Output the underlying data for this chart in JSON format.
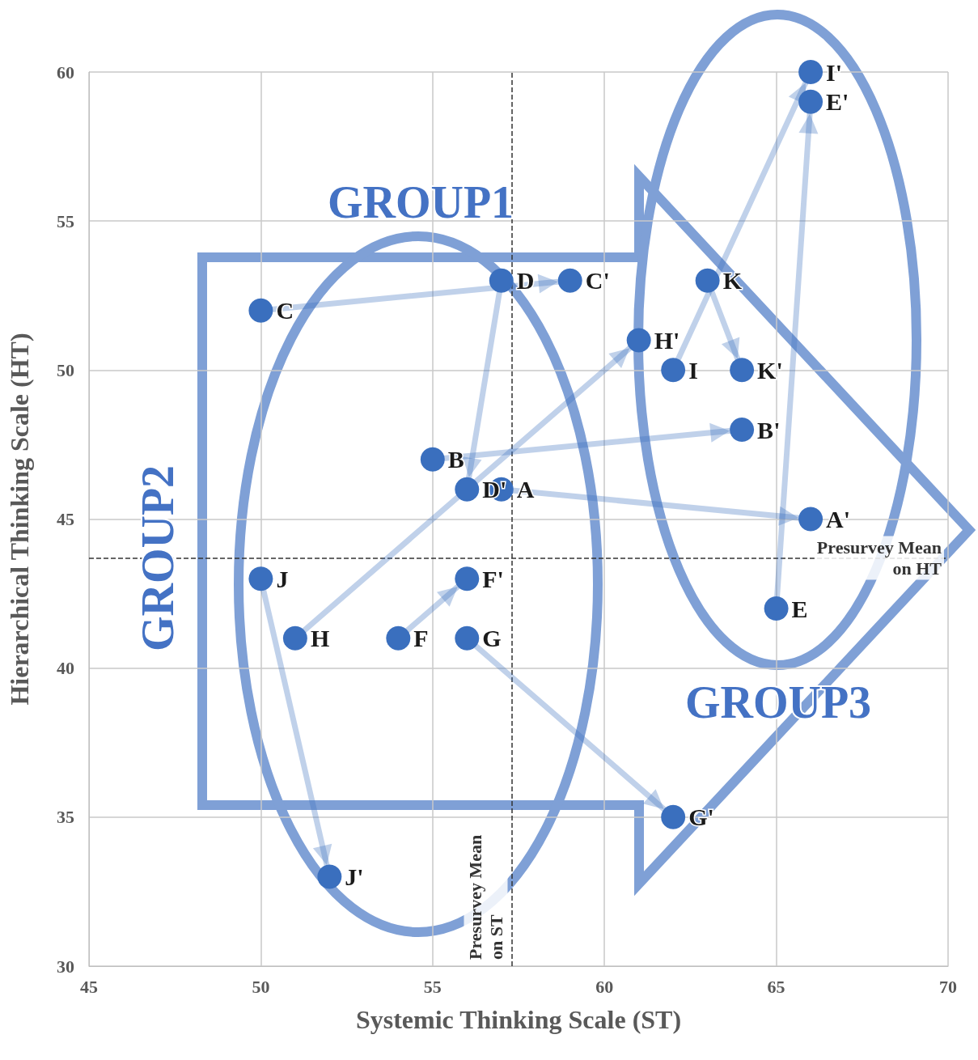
{
  "chart_data": {
    "type": "scatter",
    "xlabel": "Systemic Thinking Scale (ST)",
    "ylabel": "Hierarchical Thinking Scale (HT)",
    "xlim": [
      45,
      70
    ],
    "xticks": [
      45,
      50,
      55,
      60,
      65,
      70
    ],
    "ylim": [
      30,
      60
    ],
    "yticks": [
      30,
      35,
      40,
      45,
      50,
      55,
      60
    ],
    "grid": true,
    "marker": "circle",
    "annotations": [
      "GROUP1",
      "GROUP2",
      "GROUP3"
    ],
    "ref_lines": [
      {
        "axis": "x",
        "value": 57.3,
        "label": "Presurvey Mean\non ST",
        "color": "#333333",
        "line_style": "dashed"
      },
      {
        "axis": "y",
        "value": 43.7,
        "label": "Presurvey Mean\non HT",
        "color": "#333333",
        "line_style": "dashed"
      }
    ],
    "series": [
      {
        "type": "line",
        "color": "#3a6fbe",
        "x": [
          57,
          66
        ],
        "values": [
          46,
          45
        ],
        "value_labels": [
          "A",
          "A'"
        ]
      },
      {
        "type": "line",
        "color": "#3a6fbe",
        "x": [
          55,
          64
        ],
        "values": [
          47,
          48
        ],
        "value_labels": [
          "B",
          "B'"
        ]
      },
      {
        "type": "line",
        "color": "#3a6fbe",
        "x": [
          50,
          59
        ],
        "values": [
          52,
          53
        ],
        "value_labels": [
          "C",
          "C'"
        ]
      },
      {
        "type": "line",
        "color": "#3a6fbe",
        "x": [
          57,
          56
        ],
        "values": [
          53,
          46
        ],
        "value_labels": [
          "D",
          "D'"
        ]
      },
      {
        "type": "line",
        "color": "#3a6fbe",
        "x": [
          65,
          66
        ],
        "values": [
          42,
          59
        ],
        "value_labels": [
          "E",
          "E'"
        ]
      },
      {
        "type": "line",
        "color": "#3a6fbe",
        "x": [
          54,
          56
        ],
        "values": [
          41,
          43
        ],
        "value_labels": [
          "F",
          "F'"
        ]
      },
      {
        "type": "line",
        "color": "#3a6fbe",
        "x": [
          56,
          62
        ],
        "values": [
          41,
          35
        ],
        "value_labels": [
          "G",
          "G'"
        ]
      },
      {
        "type": "line",
        "color": "#3a6fbe",
        "x": [
          51,
          61
        ],
        "values": [
          41,
          51
        ],
        "value_labels": [
          "H",
          "H'"
        ]
      },
      {
        "type": "line",
        "color": "#3a6fbe",
        "x": [
          62,
          66
        ],
        "values": [
          50,
          60
        ],
        "value_labels": [
          "I",
          "I'"
        ]
      },
      {
        "type": "line",
        "color": "#3a6fbe",
        "x": [
          50,
          52
        ],
        "values": [
          43,
          33
        ],
        "value_labels": [
          "J",
          "J'"
        ]
      },
      {
        "type": "line",
        "color": "#3a6fbe",
        "x": [
          63,
          64
        ],
        "values": [
          53,
          50
        ],
        "value_labels": [
          "K",
          "K'"
        ]
      }
    ]
  }
}
